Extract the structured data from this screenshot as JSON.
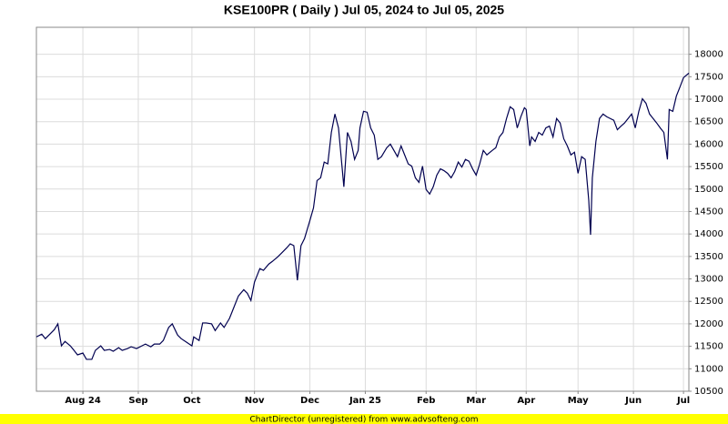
{
  "chart_data": {
    "type": "line",
    "title": "KSE100PR ( Daily ) Jul 05, 2024 to Jul 05, 2025",
    "footer": "ChartDirector (unregistered) from www.advsofteng.com",
    "color": "#000050",
    "grid": true,
    "xlim": [
      0,
      365
    ],
    "ylim": [
      10500,
      18600
    ],
    "xticks": [
      {
        "value": 26,
        "label": "Aug 24"
      },
      {
        "value": 57,
        "label": "Sep"
      },
      {
        "value": 87,
        "label": "Oct"
      },
      {
        "value": 122,
        "label": "Nov"
      },
      {
        "value": 153,
        "label": "Dec"
      },
      {
        "value": 184,
        "label": "Jan 25"
      },
      {
        "value": 218,
        "label": "Feb"
      },
      {
        "value": 246,
        "label": "Mar"
      },
      {
        "value": 274,
        "label": "Apr"
      },
      {
        "value": 303,
        "label": "May"
      },
      {
        "value": 334,
        "label": "Jun"
      },
      {
        "value": 362,
        "label": "Jul"
      }
    ],
    "yticks": [
      10500,
      11000,
      11500,
      12000,
      12500,
      13000,
      13500,
      14000,
      14500,
      15000,
      15500,
      16000,
      16500,
      17000,
      17500,
      18000
    ],
    "x": [
      0,
      3,
      5,
      8,
      10,
      12,
      14,
      16,
      19,
      21,
      23,
      26,
      28,
      31,
      33,
      36,
      38,
      41,
      43,
      46,
      48,
      51,
      53,
      56,
      59,
      61,
      64,
      66,
      69,
      71,
      74,
      76,
      79,
      81,
      84,
      87,
      88,
      91,
      93,
      95,
      98,
      100,
      103,
      105,
      108,
      110,
      113,
      116,
      118,
      120,
      122,
      125,
      127,
      130,
      132,
      135,
      137,
      140,
      142,
      144,
      146,
      148,
      150,
      153,
      155,
      157,
      159,
      161,
      163,
      165,
      167,
      169,
      172,
      174,
      176,
      178,
      180,
      181,
      183,
      185,
      187,
      189,
      191,
      193,
      196,
      198,
      200,
      202,
      204,
      206,
      208,
      210,
      212,
      214,
      216,
      218,
      220,
      222,
      224,
      226,
      228,
      230,
      232,
      234,
      236,
      238,
      240,
      242,
      244,
      246,
      248,
      250,
      252,
      255,
      257,
      259,
      261,
      263,
      265,
      267,
      269,
      271,
      273,
      274,
      276,
      277,
      279,
      281,
      283,
      285,
      287,
      289,
      291,
      293,
      295,
      297,
      299,
      301,
      303,
      305,
      307,
      309,
      310,
      311,
      313,
      315,
      317,
      319,
      321,
      323,
      325,
      327,
      329,
      331,
      333,
      335,
      337,
      339,
      341,
      343,
      345,
      347,
      349,
      351,
      353,
      354,
      356,
      358,
      360,
      362,
      365
    ],
    "values": [
      11710,
      11770,
      11670,
      11790,
      11870,
      12000,
      11510,
      11610,
      11510,
      11410,
      11310,
      11350,
      11210,
      11210,
      11410,
      11510,
      11410,
      11430,
      11390,
      11470,
      11410,
      11450,
      11490,
      11450,
      11510,
      11550,
      11490,
      11550,
      11550,
      11630,
      11920,
      12000,
      11750,
      11670,
      11590,
      11510,
      11710,
      11630,
      12020,
      12020,
      12000,
      11850,
      12020,
      11920,
      12120,
      12320,
      12620,
      12760,
      12680,
      12520,
      12930,
      13230,
      13190,
      13330,
      13390,
      13490,
      13570,
      13690,
      13780,
      13740,
      12970,
      13740,
      13900,
      14300,
      14580,
      15190,
      15250,
      15600,
      15560,
      16260,
      16670,
      16360,
      15050,
      16260,
      16060,
      15660,
      15860,
      16360,
      16730,
      16710,
      16360,
      16200,
      15660,
      15720,
      15920,
      16000,
      15860,
      15720,
      15960,
      15760,
      15560,
      15510,
      15250,
      15150,
      15510,
      14990,
      14890,
      15050,
      15310,
      15450,
      15410,
      15350,
      15250,
      15390,
      15600,
      15490,
      15660,
      15620,
      15450,
      15310,
      15560,
      15860,
      15760,
      15860,
      15920,
      16160,
      16260,
      16570,
      16830,
      16770,
      16360,
      16610,
      16810,
      16770,
      15960,
      16160,
      16060,
      16260,
      16200,
      16360,
      16400,
      16160,
      16570,
      16470,
      16120,
      15960,
      15760,
      15820,
      15350,
      15720,
      15660,
      14750,
      13980,
      15250,
      16060,
      16570,
      16670,
      16610,
      16570,
      16530,
      16320,
      16400,
      16470,
      16570,
      16670,
      16360,
      16730,
      17010,
      16910,
      16670,
      16570,
      16470,
      16360,
      16260,
      15660,
      16770,
      16730,
      17070,
      17270,
      17480,
      17580
    ]
  }
}
